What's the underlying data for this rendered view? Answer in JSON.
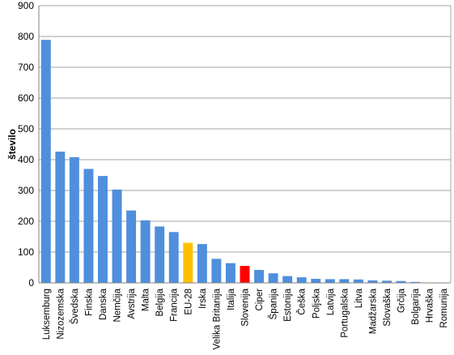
{
  "chart_data": {
    "type": "bar",
    "title": "",
    "xlabel": "",
    "ylabel": "število",
    "ylim": [
      0,
      900
    ],
    "yticks": [
      0,
      100,
      200,
      300,
      400,
      500,
      600,
      700,
      800,
      900
    ],
    "grid": true,
    "categories": [
      "Luksemburg",
      "Nizozemska",
      "Švedska",
      "Finska",
      "Danska",
      "Nemčija",
      "Avstrija",
      "Malta",
      "Belgija",
      "Francija",
      "EU-28",
      "Irska",
      "Velika Britanija",
      "Italija",
      "Slovenija",
      "Ciper",
      "Španija",
      "Estonija",
      "Češka",
      "Poljska",
      "Latvija",
      "Portugalska",
      "Litva",
      "Madžarska",
      "Slovaška",
      "Grčija",
      "Bolgarija",
      "Hrvaška",
      "Romunija"
    ],
    "values": [
      789,
      426,
      408,
      370,
      347,
      303,
      235,
      203,
      183,
      165,
      130,
      126,
      78,
      64,
      55,
      42,
      31,
      22,
      18,
      13,
      12,
      12,
      11,
      8,
      7,
      6,
      3,
      0,
      0
    ],
    "colors": {
      "default": "#4f8fdc",
      "EU-28": "#ffc000",
      "Slovenija": "#ff0000"
    }
  }
}
